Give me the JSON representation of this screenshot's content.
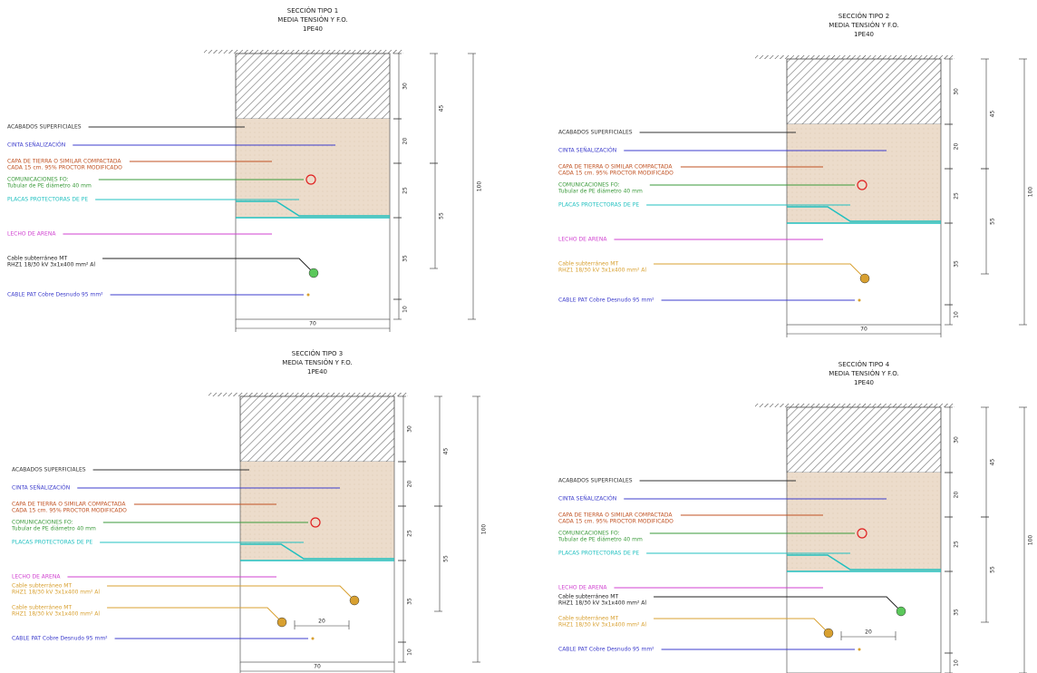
{
  "sections": [
    {
      "title": [
        "SECCIÓN TIPO 1",
        "MEDIA TENSIÓN Y F.O.",
        "1PE40"
      ],
      "labels": [
        {
          "text": [
            "ACABADOS SUPERFICIALES"
          ],
          "color": "#333333"
        },
        {
          "text": [
            "CINTA SEÑALIZACIÓN"
          ],
          "color": "#3c3ccc"
        },
        {
          "text": [
            "CAPA DE TIERRA O SIMILAR COMPACTADA",
            "CADA 15 cm. 95% PROCTOR MODIFICADO"
          ],
          "color": "#c05020"
        },
        {
          "text": [
            "COMUNICACIONES FO:",
            "Tubular de PE diámetro 40 mm"
          ],
          "color": "#3a9a3a"
        },
        {
          "text": [
            "PLACAS PROTECTORAS DE PE"
          ],
          "color": "#20c0c0"
        },
        {
          "text": [
            "LECHO DE ARENA"
          ],
          "color": "#d040d0"
        },
        {
          "text": [
            "Cable subterráneo MT",
            "RHZ1 18/30 kV 3x1x400 mm² Al"
          ],
          "color": "#222222"
        },
        {
          "text": [
            "CABLE PAT Cobre Desnudo 95 mm²"
          ],
          "color": "#3c3ccc"
        }
      ],
      "dims": [
        "30",
        "20",
        "25",
        "35",
        "10",
        "45",
        "55",
        "100"
      ],
      "width": "70"
    },
    {
      "title": [
        "SECCIÓN TIPO 2",
        "MEDIA TENSIÓN Y F.O.",
        "1PE40"
      ],
      "labels": [
        {
          "text": [
            "ACABADOS SUPERFICIALES"
          ],
          "color": "#333333"
        },
        {
          "text": [
            "CINTA SEÑALIZACIÓN"
          ],
          "color": "#3c3ccc"
        },
        {
          "text": [
            "CAPA DE TIERRA O SIMILAR COMPACTADA",
            "CADA 15 cm. 95% PROCTOR MODIFICADO"
          ],
          "color": "#c05020"
        },
        {
          "text": [
            "COMUNICACIONES FO:",
            "Tubular de PE diámetro 40 mm"
          ],
          "color": "#3a9a3a"
        },
        {
          "text": [
            "PLACAS PROTECTORAS DE PE"
          ],
          "color": "#20c0c0"
        },
        {
          "text": [
            "LECHO DE ARENA"
          ],
          "color": "#d040d0"
        },
        {
          "text": [
            "Cable subterráneo MT",
            "RHZ1 18/30 kV 3x1x400 mm² Al"
          ],
          "color": "#d8a030"
        },
        {
          "text": [
            "CABLE PAT Cobre Desnudo 95 mm²"
          ],
          "color": "#3c3ccc"
        }
      ],
      "dims": [
        "30",
        "20",
        "25",
        "35",
        "10",
        "45",
        "55",
        "100"
      ],
      "width": "70"
    },
    {
      "title": [
        "SECCIÓN TIPO 3",
        "MEDIA TENSIÓN Y F.O.",
        "1PE40"
      ],
      "labels": [
        {
          "text": [
            "ACABADOS SUPERFICIALES"
          ],
          "color": "#333333"
        },
        {
          "text": [
            "CINTA SEÑALIZACIÓN"
          ],
          "color": "#3c3ccc"
        },
        {
          "text": [
            "CAPA DE TIERRA O SIMILAR COMPACTADA",
            "CADA 15 cm. 95% PROCTOR MODIFICADO"
          ],
          "color": "#c05020"
        },
        {
          "text": [
            "COMUNICACIONES FO:",
            "Tubular de PE diámetro 40 mm"
          ],
          "color": "#3a9a3a"
        },
        {
          "text": [
            "PLACAS PROTECTORAS DE PE"
          ],
          "color": "#20c0c0"
        },
        {
          "text": [
            "LECHO DE ARENA"
          ],
          "color": "#d040d0"
        },
        {
          "text": [
            "Cable subterráneo MT",
            "RHZ1 18/30 kV 3x1x400 mm² Al"
          ],
          "color": "#d8a030"
        },
        {
          "text": [
            "Cable subterráneo MT",
            "RHZ1 18/30 kV 3x1x400 mm² Al"
          ],
          "color": "#d8a030"
        },
        {
          "text": [
            "CABLE PAT Cobre Desnudo 95 mm²"
          ],
          "color": "#3c3ccc"
        }
      ],
      "dims": [
        "30",
        "20",
        "25",
        "35",
        "10",
        "45",
        "55",
        "100"
      ],
      "width": "70",
      "spacing": "20"
    },
    {
      "title": [
        "SECCIÓN TIPO 4",
        "MEDIA TENSIÓN Y F.O.",
        "1PE40"
      ],
      "labels": [
        {
          "text": [
            "ACABADOS SUPERFICIALES"
          ],
          "color": "#333333"
        },
        {
          "text": [
            "CINTA SEÑALIZACIÓN"
          ],
          "color": "#3c3ccc"
        },
        {
          "text": [
            "CAPA DE TIERRA O SIMILAR COMPACTADA",
            "CADA 15 cm. 95% PROCTOR MODIFICADO"
          ],
          "color": "#c05020"
        },
        {
          "text": [
            "COMUNICACIONES FO:",
            "Tubular de PE diámetro 40 mm"
          ],
          "color": "#3a9a3a"
        },
        {
          "text": [
            "PLACAS PROTECTORAS DE PE"
          ],
          "color": "#20c0c0"
        },
        {
          "text": [
            "LECHO DE ARENA"
          ],
          "color": "#d040d0"
        },
        {
          "text": [
            "Cable subterráneo MT",
            "RHZ1 18/30 kV 3x1x400 mm² Al"
          ],
          "color": "#222222"
        },
        {
          "text": [
            "Cable subterráneo MT",
            "RHZ1 18/30 kV 3x1x400 mm² Al"
          ],
          "color": "#d8a030"
        },
        {
          "text": [
            "CABLE PAT Cobre Desnudo 95 mm²"
          ],
          "color": "#3c3ccc"
        }
      ],
      "dims": [
        "30",
        "20",
        "25",
        "35",
        "10",
        "45",
        "55",
        "100"
      ],
      "width": "70",
      "spacing": "20"
    }
  ]
}
